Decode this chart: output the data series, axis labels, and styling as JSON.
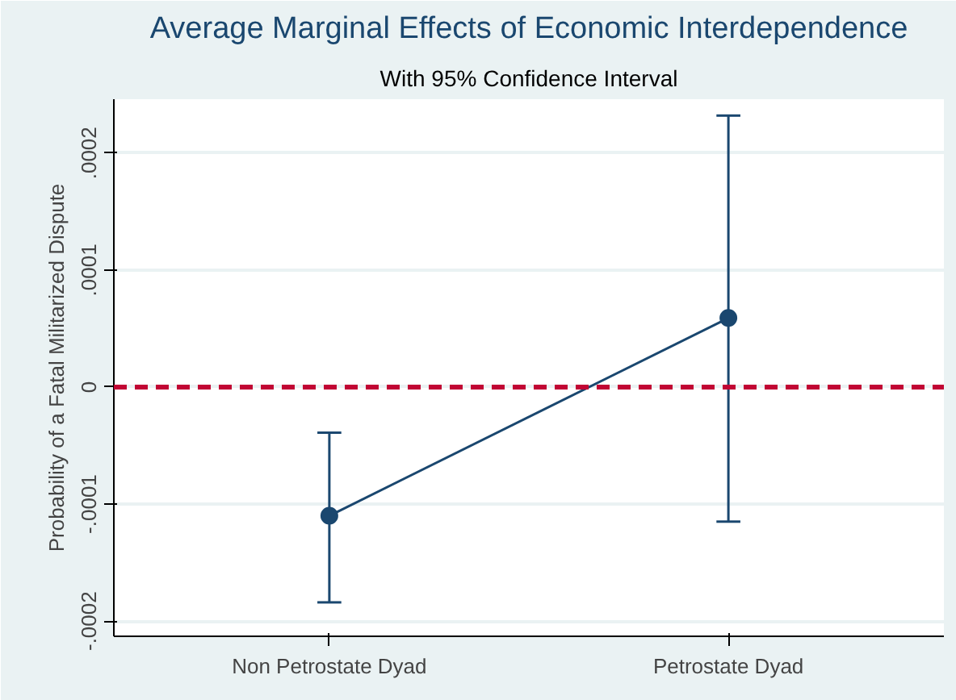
{
  "chart_data": {
    "type": "line",
    "title": "Average Marginal Effects of Economic Interdependence",
    "subtitle": "With 95% Confidence Interval",
    "ylabel": "Probability of a Fatal Militarized Dispute",
    "categories": [
      "Non Petrostate Dyad",
      "Petrostate Dyad"
    ],
    "series": [
      {
        "color": "#1a476f",
        "values": [
          -0.00011,
          5.9e-05
        ],
        "errors": [
          [
            -0.000184,
            -3.9e-05
          ],
          [
            -0.000115,
            0.000232
          ]
        ]
      }
    ],
    "ylim": [
      -0.000213,
      0.000246
    ],
    "yticks": [
      {
        "value": -0.0002,
        "label": "-.0002"
      },
      {
        "value": -0.0001,
        "label": "-.0001"
      },
      0,
      {
        "value": 0.0001,
        "label": ".0001"
      },
      {
        "value": 0.0002,
        "label": ".0002"
      }
    ],
    "ref_lines": [
      {
        "axis": "y",
        "value": 0,
        "color": "#c10534",
        "line_style": "dashed"
      }
    ],
    "grid": "y",
    "marker": "circle",
    "line_style": "solid"
  }
}
